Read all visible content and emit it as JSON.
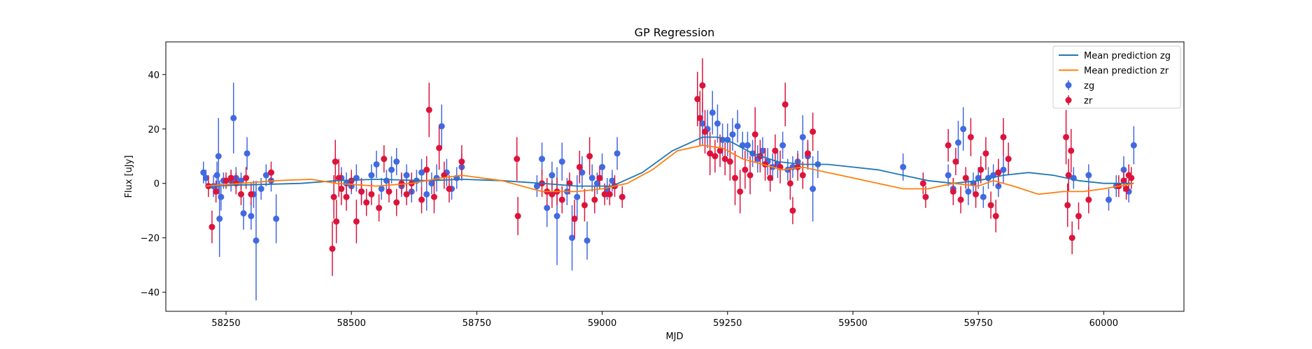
{
  "chart_data": {
    "type": "scatter",
    "title": "GP Regression",
    "xlabel": "MJD",
    "ylabel": "Flux [uJy]",
    "xlim": [
      58130,
      60160
    ],
    "ylim": [
      -47,
      52
    ],
    "xticks": [
      58250,
      58500,
      58750,
      59000,
      59250,
      59500,
      59750,
      60000
    ],
    "yticks": [
      -40,
      -20,
      0,
      20,
      40
    ],
    "legend_position": "upper-right",
    "colors": {
      "zg_line": "#1f77b4",
      "zr_line": "#ff7f0e",
      "zg_points": "#4169e1",
      "zr_points": "#dc143c"
    },
    "lines": [
      {
        "name": "Mean prediction zg",
        "color": "#1f77b4",
        "x": [
          58210,
          58300,
          58400,
          58470,
          58550,
          58650,
          58720,
          58800,
          58880,
          58950,
          59020,
          59080,
          59140,
          59200,
          59230,
          59260,
          59300,
          59350,
          59400,
          59450,
          59500,
          59550,
          59600,
          59650,
          59700,
          59750,
          59800,
          59850,
          59900,
          59950,
          60000,
          60060
        ],
        "y": [
          -1,
          -0.5,
          0,
          1,
          1.5,
          1,
          1.5,
          1,
          0,
          -1,
          -1,
          4,
          12,
          17,
          17,
          15,
          11,
          8,
          7,
          7,
          6,
          5,
          3,
          1,
          0,
          1,
          3,
          4,
          3,
          1,
          0,
          0
        ]
      },
      {
        "name": "Mean prediction zr",
        "color": "#ff7f0e",
        "x": [
          58210,
          58280,
          58350,
          58420,
          58470,
          58550,
          58620,
          58680,
          58720,
          58800,
          58880,
          58950,
          59000,
          59050,
          59100,
          59150,
          59200,
          59240,
          59280,
          59320,
          59360,
          59400,
          59450,
          59500,
          59550,
          59600,
          59650,
          59700,
          59750,
          59780,
          59820,
          59870,
          59920,
          59960,
          60000,
          60060
        ],
        "y": [
          -1,
          0,
          1,
          1.5,
          0,
          -1,
          0,
          2,
          3,
          1,
          -3,
          -3,
          -2,
          0,
          5,
          12,
          14,
          13,
          9,
          7,
          5,
          6,
          4,
          2,
          0,
          -2,
          -2,
          0,
          -1,
          1,
          -1,
          -4,
          -3,
          -3,
          -2,
          0
        ]
      }
    ],
    "series": [
      {
        "name": "zg",
        "color": "#4169e1",
        "points": [
          [
            58205,
            4,
            4
          ],
          [
            58210,
            2,
            3
          ],
          [
            58225,
            -1,
            4
          ],
          [
            58232,
            3,
            5
          ],
          [
            58235,
            10,
            14
          ],
          [
            58237,
            -13,
            14
          ],
          [
            58240,
            -5,
            5
          ],
          [
            58245,
            1,
            3
          ],
          [
            58260,
            1,
            4
          ],
          [
            58265,
            24,
            13
          ],
          [
            58270,
            2,
            4
          ],
          [
            58280,
            1,
            3
          ],
          [
            58285,
            -11,
            6
          ],
          [
            58292,
            11,
            6
          ],
          [
            58300,
            -12,
            5
          ],
          [
            58305,
            -4,
            5
          ],
          [
            58310,
            -21,
            22
          ],
          [
            58320,
            -2,
            4
          ],
          [
            58330,
            3,
            4
          ],
          [
            58340,
            1,
            4
          ],
          [
            58350,
            -13,
            9
          ],
          [
            58480,
            2,
            4
          ],
          [
            58490,
            0,
            4
          ],
          [
            58500,
            -1,
            3
          ],
          [
            58510,
            2,
            5
          ],
          [
            58520,
            -3,
            4
          ],
          [
            58540,
            3,
            4
          ],
          [
            58550,
            7,
            5
          ],
          [
            58560,
            -2,
            4
          ],
          [
            58570,
            1,
            4
          ],
          [
            58580,
            5,
            5
          ],
          [
            58590,
            8,
            5
          ],
          [
            58600,
            -1,
            4
          ],
          [
            58610,
            3,
            4
          ],
          [
            58620,
            -3,
            4
          ],
          [
            58630,
            1,
            4
          ],
          [
            58640,
            4,
            5
          ],
          [
            58650,
            -4,
            6
          ],
          [
            58660,
            0,
            4
          ],
          [
            58670,
            2,
            5
          ],
          [
            58680,
            21,
            8
          ],
          [
            58690,
            4,
            5
          ],
          [
            58700,
            -2,
            4
          ],
          [
            58710,
            2,
            4
          ],
          [
            58720,
            6,
            5
          ],
          [
            58870,
            -1,
            4
          ],
          [
            58880,
            9,
            6
          ],
          [
            58890,
            -9,
            7
          ],
          [
            58900,
            3,
            5
          ],
          [
            58910,
            -12,
            18
          ],
          [
            58920,
            8,
            7
          ],
          [
            58930,
            -3,
            5
          ],
          [
            58940,
            -20,
            12
          ],
          [
            58950,
            -5,
            8
          ],
          [
            58960,
            4,
            6
          ],
          [
            58970,
            -21,
            7
          ],
          [
            58980,
            2,
            5
          ],
          [
            58990,
            0,
            4
          ],
          [
            59000,
            6,
            5
          ],
          [
            59010,
            -2,
            4
          ],
          [
            59020,
            1,
            4
          ],
          [
            59030,
            11,
            6
          ],
          [
            59200,
            22,
            8
          ],
          [
            59210,
            20,
            7
          ],
          [
            59220,
            26,
            8
          ],
          [
            59230,
            22,
            7
          ],
          [
            59240,
            16,
            6
          ],
          [
            59250,
            16,
            6
          ],
          [
            59260,
            18,
            6
          ],
          [
            59270,
            21,
            6
          ],
          [
            59280,
            14,
            5
          ],
          [
            59290,
            14,
            5
          ],
          [
            59300,
            11,
            5
          ],
          [
            59310,
            9,
            5
          ],
          [
            59320,
            12,
            5
          ],
          [
            59330,
            8,
            5
          ],
          [
            59340,
            6,
            5
          ],
          [
            59350,
            7,
            5
          ],
          [
            59360,
            14,
            5
          ],
          [
            59370,
            5,
            4
          ],
          [
            59380,
            6,
            4
          ],
          [
            59390,
            8,
            4
          ],
          [
            59400,
            17,
            8
          ],
          [
            59410,
            10,
            5
          ],
          [
            59420,
            -2,
            12
          ],
          [
            59430,
            7,
            5
          ],
          [
            59600,
            6,
            5
          ],
          [
            59690,
            3,
            4
          ],
          [
            59700,
            -2,
            4
          ],
          [
            59710,
            15,
            8
          ],
          [
            59720,
            20,
            8
          ],
          [
            59730,
            -3,
            5
          ],
          [
            59740,
            0,
            4
          ],
          [
            59750,
            2,
            4
          ],
          [
            59760,
            -5,
            4
          ],
          [
            59770,
            2,
            4
          ],
          [
            59780,
            3,
            4
          ],
          [
            59790,
            -1,
            4
          ],
          [
            59800,
            5,
            5
          ],
          [
            59940,
            2,
            4
          ],
          [
            59970,
            3,
            4
          ],
          [
            60010,
            -6,
            4
          ],
          [
            60025,
            -1,
            4
          ],
          [
            60040,
            5,
            5
          ],
          [
            60050,
            -3,
            4
          ],
          [
            60060,
            14,
            7
          ]
        ]
      },
      {
        "name": "zr",
        "color": "#dc143c",
        "points": [
          [
            58215,
            -1,
            4
          ],
          [
            58222,
            -16,
            6
          ],
          [
            58230,
            -3,
            4
          ],
          [
            58250,
            1,
            3
          ],
          [
            58260,
            2,
            3
          ],
          [
            58270,
            0,
            4
          ],
          [
            58280,
            -4,
            4
          ],
          [
            58290,
            2,
            4
          ],
          [
            58300,
            -4,
            4
          ],
          [
            58340,
            4,
            4
          ],
          [
            58462,
            -24,
            10
          ],
          [
            58465,
            -5,
            8
          ],
          [
            58468,
            8,
            8
          ],
          [
            58470,
            -14,
            8
          ],
          [
            58475,
            2,
            7
          ],
          [
            58480,
            -2,
            6
          ],
          [
            58490,
            -5,
            5
          ],
          [
            58500,
            1,
            4
          ],
          [
            58510,
            -14,
            8
          ],
          [
            58520,
            -3,
            5
          ],
          [
            58530,
            -7,
            5
          ],
          [
            58540,
            -4,
            4
          ],
          [
            58555,
            -9,
            5
          ],
          [
            58565,
            9,
            5
          ],
          [
            58575,
            -3,
            4
          ],
          [
            58590,
            -7,
            5
          ],
          [
            58600,
            0,
            4
          ],
          [
            58610,
            -4,
            4
          ],
          [
            58620,
            0,
            4
          ],
          [
            58640,
            -6,
            5
          ],
          [
            58650,
            5,
            5
          ],
          [
            58655,
            27,
            10
          ],
          [
            58665,
            -5,
            6
          ],
          [
            58675,
            13,
            8
          ],
          [
            58685,
            3,
            5
          ],
          [
            58695,
            -2,
            5
          ],
          [
            58720,
            8,
            6
          ],
          [
            58830,
            9,
            8
          ],
          [
            58832,
            -12,
            7
          ],
          [
            58880,
            0,
            5
          ],
          [
            58890,
            -3,
            5
          ],
          [
            58900,
            -4,
            5
          ],
          [
            58910,
            -3,
            5
          ],
          [
            58920,
            -6,
            5
          ],
          [
            58935,
            0,
            4
          ],
          [
            58945,
            -13,
            7
          ],
          [
            58955,
            6,
            6
          ],
          [
            58965,
            -8,
            6
          ],
          [
            58975,
            10,
            7
          ],
          [
            58985,
            -6,
            5
          ],
          [
            58995,
            2,
            4
          ],
          [
            59005,
            -4,
            4
          ],
          [
            59015,
            -4,
            4
          ],
          [
            59025,
            -1,
            4
          ],
          [
            59040,
            -5,
            4
          ],
          [
            59190,
            31,
            10
          ],
          [
            59195,
            24,
            10
          ],
          [
            59200,
            36,
            10
          ],
          [
            59205,
            19,
            8
          ],
          [
            59215,
            11,
            8
          ],
          [
            59225,
            10,
            6
          ],
          [
            59235,
            12,
            6
          ],
          [
            59245,
            9,
            6
          ],
          [
            59255,
            8,
            7
          ],
          [
            59265,
            2,
            10
          ],
          [
            59275,
            -3,
            8
          ],
          [
            59285,
            5,
            7
          ],
          [
            59295,
            3,
            7
          ],
          [
            59305,
            18,
            10
          ],
          [
            59315,
            10,
            6
          ],
          [
            59325,
            7,
            6
          ],
          [
            59335,
            2,
            5
          ],
          [
            59345,
            12,
            6
          ],
          [
            59355,
            6,
            6
          ],
          [
            59365,
            29,
            8
          ],
          [
            59375,
            0,
            6
          ],
          [
            59380,
            -10,
            5
          ],
          [
            59390,
            6,
            5
          ],
          [
            59400,
            3,
            5
          ],
          [
            59410,
            11,
            5
          ],
          [
            59420,
            19,
            7
          ],
          [
            59640,
            0,
            4
          ],
          [
            59645,
            -5,
            4
          ],
          [
            59690,
            14,
            6
          ],
          [
            59700,
            -3,
            5
          ],
          [
            59705,
            8,
            5
          ],
          [
            59715,
            -6,
            5
          ],
          [
            59725,
            2,
            4
          ],
          [
            59735,
            17,
            7
          ],
          [
            59745,
            -4,
            5
          ],
          [
            59755,
            5,
            5
          ],
          [
            59765,
            11,
            6
          ],
          [
            59775,
            -8,
            5
          ],
          [
            59785,
            -12,
            6
          ],
          [
            59790,
            4,
            5
          ],
          [
            59800,
            17,
            7
          ],
          [
            59810,
            9,
            6
          ],
          [
            59925,
            17,
            10
          ],
          [
            59928,
            -8,
            8
          ],
          [
            59930,
            3,
            6
          ],
          [
            59935,
            12,
            8
          ],
          [
            59937,
            -20,
            6
          ],
          [
            59950,
            -12,
            5
          ],
          [
            59970,
            -6,
            5
          ],
          [
            60030,
            -1,
            4
          ],
          [
            60040,
            1,
            4
          ],
          [
            60045,
            -2,
            4
          ],
          [
            60050,
            3,
            4
          ],
          [
            60055,
            2,
            4
          ]
        ]
      }
    ]
  }
}
